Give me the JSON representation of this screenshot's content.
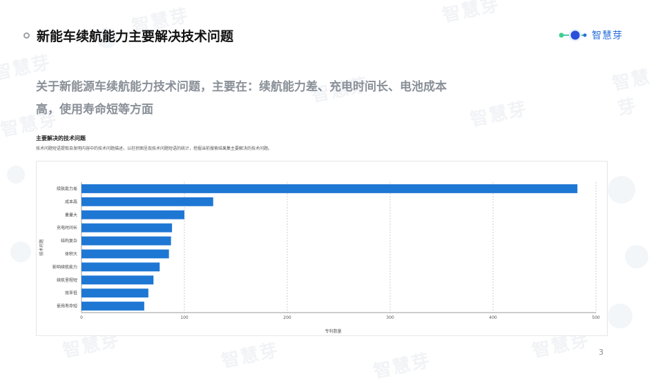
{
  "header": {
    "title": "新能车续航能力主要解决技术问题",
    "logo_text": "智慧芽"
  },
  "watermark_text": "智慧芽",
  "subtitle": "关于新能源车续航能力技术问题，主要在：续航能力差、充电时间长、电池成本高，使用寿命短等方面",
  "panel": {
    "title": "主要解决的技术问题",
    "description": "技术问题短语提取自发明内容中的技术问题描述，以柱状图呈现技术问题短语的统计，挖掘当前搜索结果集主要解决的技术问题。"
  },
  "page_number": "3",
  "colors": {
    "bar": "#1f77d4",
    "grid": "#cccccc",
    "accent": "#2a6fdb"
  },
  "chart_data": {
    "type": "bar",
    "orientation": "horizontal",
    "categories": [
      "续航能力差",
      "成本高",
      "重量大",
      "充电时间长",
      "结构复杂",
      "体积大",
      "影响续航能力",
      "续航里程短",
      "效率低",
      "使用寿命短"
    ],
    "values": [
      482,
      128,
      100,
      88,
      87,
      85,
      76,
      70,
      65,
      61
    ],
    "xlabel": "专利数量",
    "ylabel": "技术问题",
    "xlim": [
      0,
      500
    ],
    "xticks": [
      0,
      100,
      200,
      300,
      400,
      500
    ],
    "grid": true
  }
}
